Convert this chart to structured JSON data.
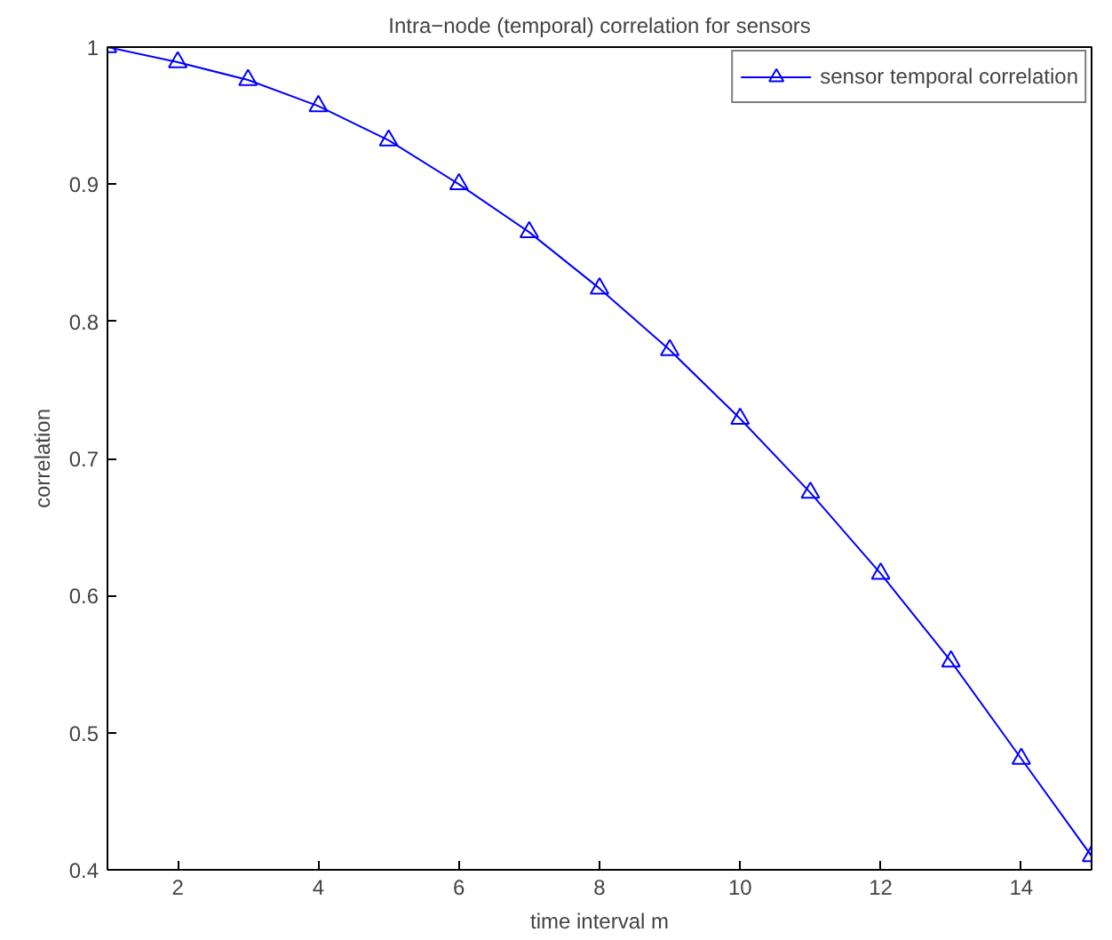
{
  "chart_data": {
    "type": "line",
    "title": "Intra−node (temporal) correlation for sensors",
    "xlabel": "time interval m",
    "ylabel": "correlation",
    "x": [
      1,
      2,
      3,
      4,
      5,
      6,
      7,
      8,
      9,
      10,
      11,
      12,
      13,
      14,
      15
    ],
    "series": [
      {
        "name": "sensor temporal correlation",
        "color": "#0000ff",
        "values": [
          1.0,
          0.989,
          0.976,
          0.957,
          0.932,
          0.9,
          0.865,
          0.824,
          0.779,
          0.729,
          0.675,
          0.616,
          0.552,
          0.481,
          0.41
        ]
      }
    ],
    "xlim": [
      1,
      15
    ],
    "ylim": [
      0.4,
      1
    ],
    "xticks": [
      2,
      4,
      6,
      8,
      10,
      12,
      14
    ],
    "yticks": [
      0.4,
      0.5,
      0.6,
      0.7,
      0.8,
      0.9,
      1
    ],
    "marker": "triangle",
    "line_style": "solid",
    "legend": "top right",
    "grid": false
  }
}
